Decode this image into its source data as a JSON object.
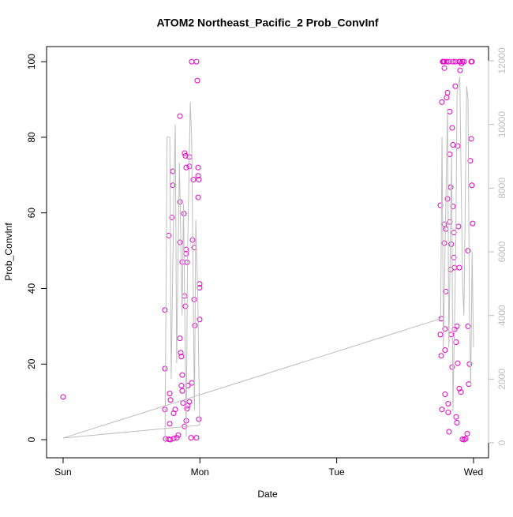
{
  "chart_data": {
    "type": "scatter",
    "title": "ATOM2 Northeast_Pacific_2 Prob_ConvInf",
    "x_label": "Date",
    "y_label": "Prob_ConvInf",
    "xlim": [
      -0.121,
      3.11
    ],
    "xticks": [
      {
        "value": 0,
        "label": "Sun"
      },
      {
        "value": 1,
        "label": "Mon"
      },
      {
        "value": 2,
        "label": "Tue"
      },
      {
        "value": 3,
        "label": "Wed"
      }
    ],
    "ylim": [
      -4.8,
      104
    ],
    "yticks": [
      0,
      20,
      40,
      60,
      80,
      100
    ],
    "y2lim": [
      -471,
      12446
    ],
    "y2ticks": [
      0,
      2000,
      4000,
      6000,
      8000,
      10000,
      12000
    ],
    "y2_color": "#bebebe",
    "series": [
      {
        "type": "scatter",
        "color": "#e800c8",
        "x": [
          0,
          0.744,
          0.744,
          0.744,
          0.773,
          0.779,
          0.785,
          0.779,
          0.796,
          0.802,
          0.802,
          0.808,
          0.819,
          0.854,
          0.854,
          0.854,
          0.854,
          0.86,
          0.865,
          0.865,
          0.871,
          0.871,
          0.877,
          0.871,
          0.883,
          0.888,
          0.894,
          0.888,
          0.894,
          0.9,
          0.9,
          0.906,
          0.9,
          0.906,
          0.912,
          0.912,
          0.923,
          0.923,
          0.94,
          0.952,
          0.946,
          0.958,
          0.958,
          0.963,
          0.975,
          0.981,
          0.987,
          0.987,
          0.987,
          0.992,
          0.992,
          0.998,
          0.998,
          0.998,
          0.975,
          0.935,
          0.75,
          0.773,
          0.785,
          0.808,
          0.831,
          0.842,
          0.9,
          0.888,
          0.923,
          0.94,
          2.758,
          2.758,
          2.764,
          2.764,
          2.769,
          2.769,
          2.775,
          2.787,
          2.787,
          2.787,
          2.787,
          2.792,
          2.792,
          2.792,
          2.798,
          2.798,
          2.804,
          2.81,
          2.81,
          2.815,
          2.815,
          2.821,
          2.821,
          2.827,
          2.827,
          2.827,
          2.833,
          2.833,
          2.838,
          2.838,
          2.844,
          2.844,
          2.85,
          2.85,
          2.856,
          2.856,
          2.862,
          2.862,
          2.867,
          2.867,
          2.873,
          2.873,
          2.879,
          2.879,
          2.885,
          2.885,
          2.89,
          2.896,
          2.896,
          2.902,
          2.902,
          2.908,
          2.913,
          2.919,
          2.919,
          2.931,
          2.942,
          2.954,
          2.96,
          2.96,
          2.965,
          2.971,
          2.977,
          2.983,
          2.988,
          2.988,
          2.994,
          2.781,
          2.804,
          2.85,
          2.896,
          2.931,
          2.983
        ],
        "values": [
          11.3,
          34.3,
          18.8,
          8,
          54,
          12.2,
          10.5,
          4.2,
          58.8,
          71,
          67.3,
          7,
          8,
          85.6,
          62.9,
          52.2,
          26.8,
          23,
          22,
          14.3,
          17.1,
          12.9,
          9.7,
          47,
          59.8,
          75.8,
          75.1,
          38,
          35.3,
          50.3,
          49.2,
          46.9,
          72,
          8.2,
          9,
          14.3,
          74.8,
          72.3,
          100,
          68.8,
          52.8,
          50.8,
          37.1,
          30.2,
          100,
          95,
          72,
          69.8,
          64.1,
          68.8,
          5.4,
          41.2,
          40.2,
          31.8,
          0.5,
          0.5,
          0.2,
          0.1,
          0,
          0.3,
          0.5,
          1.2,
          5,
          3.5,
          10,
          15,
          62,
          27.8,
          32,
          22.2,
          8,
          89.3,
          100,
          100,
          98.3,
          52,
          57,
          29.3,
          23.7,
          12,
          55.7,
          39.2,
          90.5,
          91.8,
          63.7,
          9.5,
          7.2,
          100,
          2.1,
          75.5,
          57.6,
          86.8,
          66.8,
          45,
          27.8,
          51.7,
          19.2,
          82.5,
          78,
          61.7,
          54.8,
          48.2,
          45.5,
          29.2,
          93.5,
          100,
          25.8,
          6,
          30,
          4.5,
          77.7,
          20.2,
          56.4,
          45.5,
          13.5,
          100,
          97.7,
          12.6,
          99.5,
          100,
          0.1,
          0,
          0.2,
          1.6,
          30,
          50,
          14.7,
          20,
          73.8,
          79.6,
          100,
          67.3,
          57.2,
          100,
          100,
          100,
          100,
          100,
          100
        ]
      },
      {
        "type": "line",
        "axis": "y2",
        "color": "#bebebe",
        "x": [
          0.745,
          0.76,
          0.78,
          0.79,
          0.81,
          0.82,
          0.83,
          0.85,
          0.87,
          0.88,
          0.9,
          0.91,
          0.93,
          0.94,
          0.96,
          0.97,
          0.985,
          0.998,
          0,
          2.76,
          2.77,
          2.78,
          2.8,
          2.81,
          2.82,
          2.84,
          2.85,
          2.87,
          2.88,
          2.9,
          2.92,
          2.93,
          2.95,
          2.96,
          2.97,
          2.98,
          2.99,
          3.0
        ],
        "values": [
          0,
          9600,
          9600,
          2000,
          8000,
          10000,
          2500,
          8800,
          4000,
          7500,
          200,
          6000,
          10700,
          9500,
          1000,
          7000,
          4500,
          550,
          150,
          3900,
          9600,
          3000,
          8000,
          10500,
          3000,
          9000,
          1000,
          6000,
          11000,
          11500,
          5000,
          4000,
          11200,
          10800,
          4200,
          1800,
          6000,
          3000
        ]
      }
    ]
  }
}
